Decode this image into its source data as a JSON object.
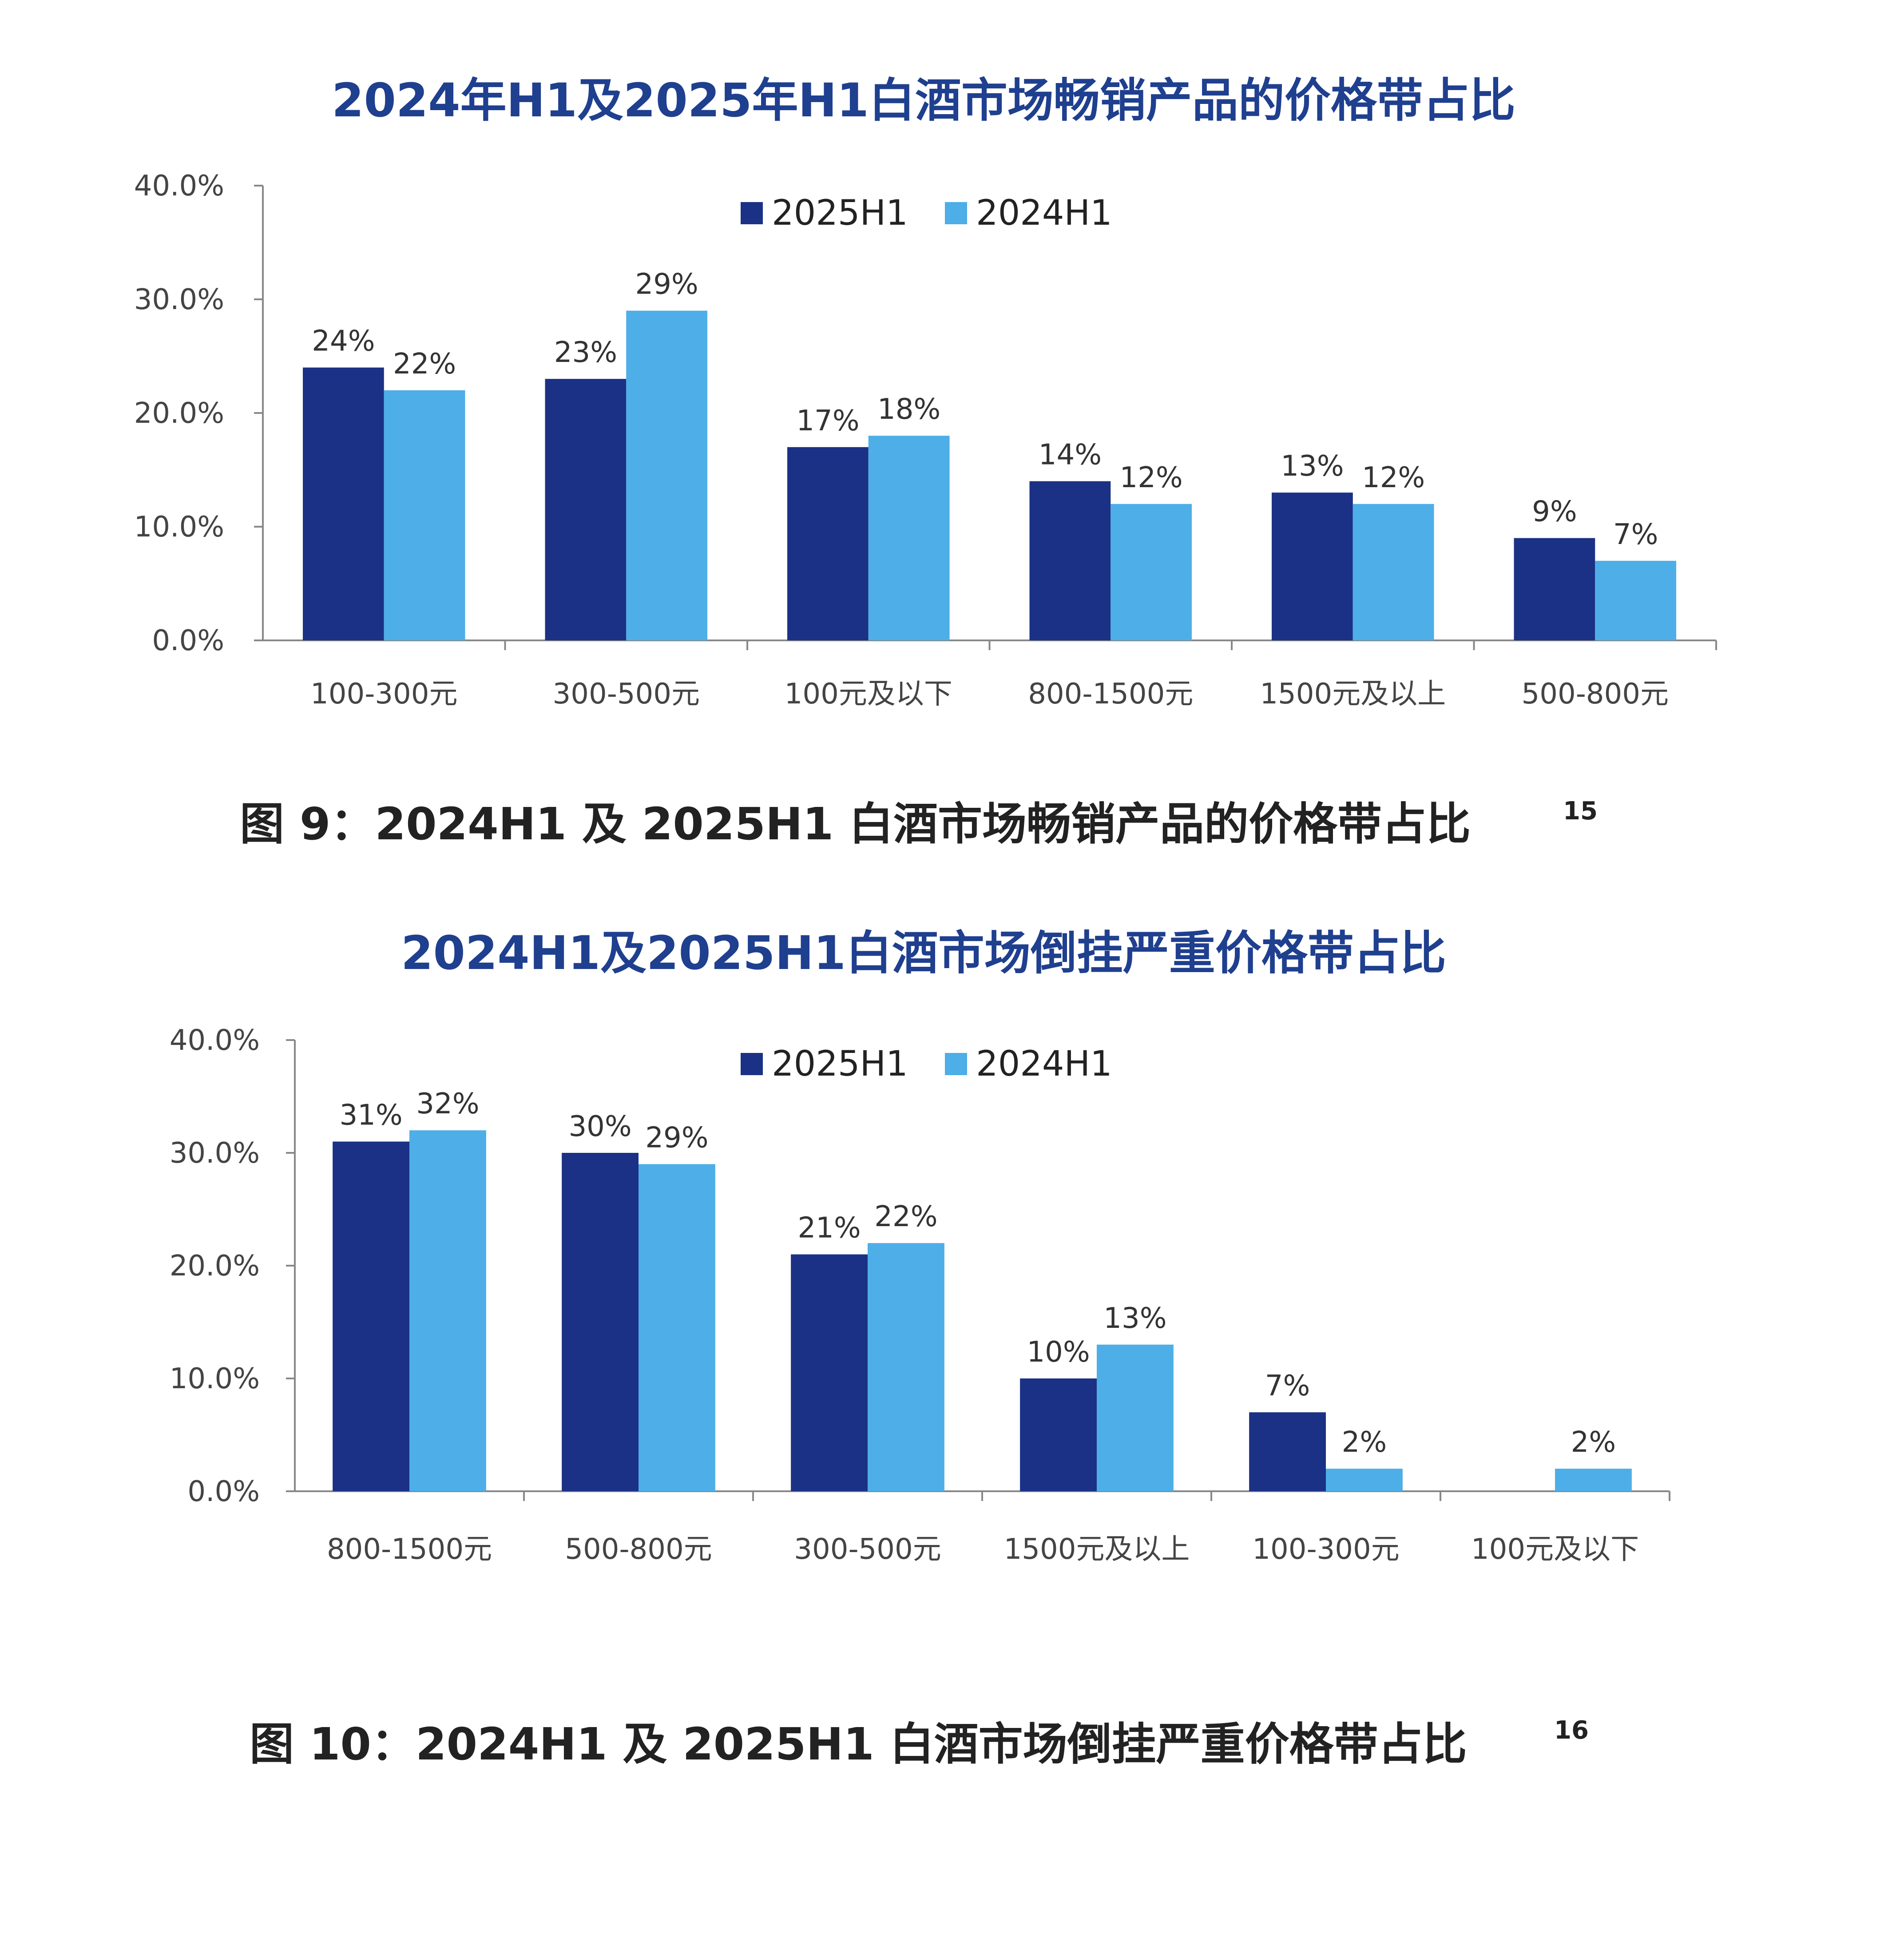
{
  "charts": [
    {
      "chart_data": {
        "type": "bar",
        "title": "2024年H1及2025年H1白酒市场畅销产品的价格带占比",
        "categories": [
          "100-300元",
          "300-500元",
          "100元及以下",
          "800-1500元",
          "1500元及以上",
          "500-800元"
        ],
        "series": [
          {
            "name": "2025H1",
            "values": [
              24,
              23,
              17,
              14,
              13,
              9
            ],
            "labels": [
              "24%",
              "23%",
              "17%",
              "14%",
              "13%",
              "9%"
            ]
          },
          {
            "name": "2024H1",
            "values": [
              22,
              29,
              18,
              12,
              12,
              7
            ],
            "labels": [
              "22%",
              "29%",
              "18%",
              "12%",
              "12%",
              "7%"
            ]
          }
        ],
        "ylim": [
          0,
          40
        ],
        "yticks": [
          "0.0%",
          "10.0%",
          "20.0%",
          "30.0%",
          "40.0%"
        ],
        "legend": "top-center",
        "grid": false,
        "colors": [
          "#1a3185",
          "#4eaee7"
        ]
      },
      "caption": "图 9：2024H1 及 2025H1 白酒市场畅销产品的价格带占比",
      "caption_ref": "15"
    },
    {
      "chart_data": {
        "type": "bar",
        "title": "2024H1及2025H1白酒市场倒挂严重价格带占比",
        "categories": [
          "800-1500元",
          "500-800元",
          "300-500元",
          "1500元及以上",
          "100-300元",
          "100元及以下"
        ],
        "series": [
          {
            "name": "2025H1",
            "values": [
              31,
              30,
              21,
              10,
              7,
              0
            ],
            "labels": [
              "31%",
              "30%",
              "21%",
              "10%",
              "7%",
              ""
            ]
          },
          {
            "name": "2024H1",
            "values": [
              32,
              29,
              22,
              13,
              2,
              2
            ],
            "labels": [
              "32%",
              "29%",
              "22%",
              "13%",
              "2%",
              "2%"
            ]
          }
        ],
        "ylim": [
          0,
          40
        ],
        "yticks": [
          "0.0%",
          "10.0%",
          "20.0%",
          "30.0%",
          "40.0%"
        ],
        "legend": "top-center",
        "grid": false,
        "colors": [
          "#1a3185",
          "#4eaee7"
        ]
      },
      "caption": "图 10：2024H1 及 2025H1 白酒市场倒挂严重价格带占比",
      "caption_ref": "16"
    }
  ]
}
